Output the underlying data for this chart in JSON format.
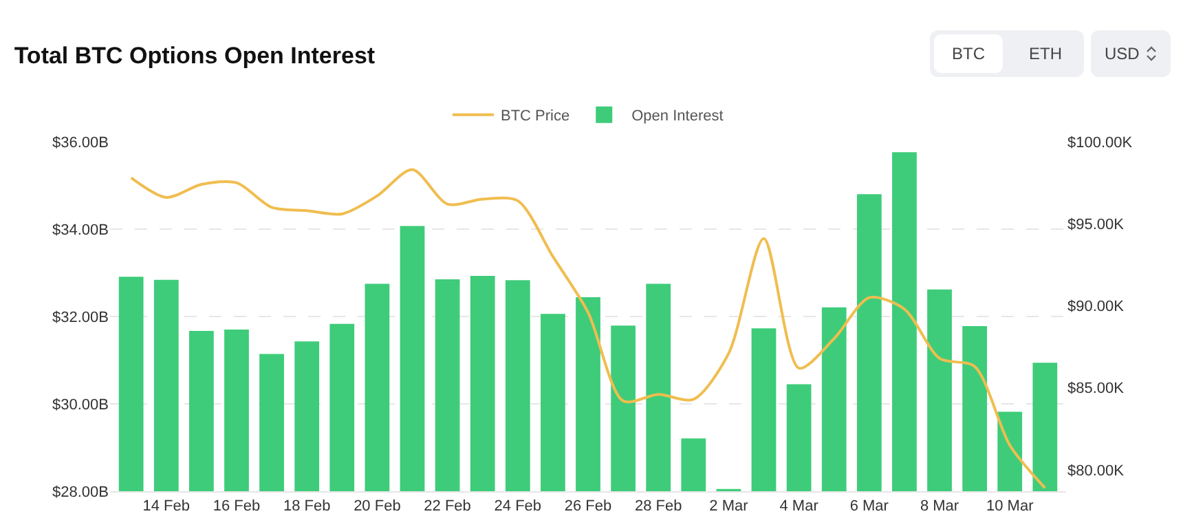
{
  "chart_data": {
    "type": "bar",
    "title": "Total BTC Options Open Interest",
    "annotations": [
      "BTC",
      "ETH",
      "USD"
    ],
    "categories": [
      null,
      "14 Feb",
      null,
      "16 Feb",
      null,
      "18 Feb",
      null,
      "20 Feb",
      null,
      "22 Feb",
      null,
      "24 Feb",
      null,
      "26 Feb",
      null,
      "28 Feb",
      null,
      "2 Mar",
      null,
      "4 Mar",
      null,
      "6 Mar",
      null,
      "8 Mar",
      null,
      "10 Mar",
      null
    ],
    "series": [
      {
        "name": "BTC Price",
        "type": "line",
        "axis": "y2",
        "color": "#f0bd4f",
        "values": [
          97.8,
          96.6,
          97.4,
          97.5,
          96.0,
          95.8,
          95.6,
          96.7,
          98.3,
          96.2,
          96.5,
          96.4,
          93.0,
          89.6,
          84.2,
          84.6,
          84.3,
          87.1,
          94.1,
          86.2,
          88.0,
          90.5,
          89.8,
          86.8,
          86.3,
          81.5,
          78.9
        ]
      },
      {
        "name": "Open Interest",
        "color": "#3ecc7a",
        "values": [
          32.91,
          32.84,
          31.67,
          31.7,
          31.14,
          31.43,
          31.83,
          32.75,
          34.07,
          32.85,
          32.93,
          32.83,
          32.06,
          32.44,
          31.79,
          32.75,
          29.21,
          28.05,
          31.73,
          30.45,
          32.21,
          34.8,
          35.76,
          32.62,
          31.78,
          29.82,
          30.94
        ]
      }
    ],
    "ylim": [
      28,
      36
    ],
    "yticks": [
      {
        "value": 28,
        "label": "$28.00B"
      },
      {
        "value": 30,
        "label": "$30.00B"
      },
      {
        "value": 32,
        "label": "$32.00B"
      },
      {
        "value": 34,
        "label": "$34.00B"
      },
      {
        "value": 36,
        "label": "$36.00B"
      }
    ],
    "y2lim": [
      78.7,
      100
    ],
    "y2ticks": [
      {
        "value": 80,
        "label": "$80.00K"
      },
      {
        "value": 85,
        "label": "$85.00K"
      },
      {
        "value": 90,
        "label": "$90.00K"
      },
      {
        "value": 95,
        "label": "$95.00K"
      },
      {
        "value": 100,
        "label": "$100.00K"
      }
    ],
    "grid": "y",
    "legend": "top",
    "line_style": "solid",
    "marker": "none"
  }
}
